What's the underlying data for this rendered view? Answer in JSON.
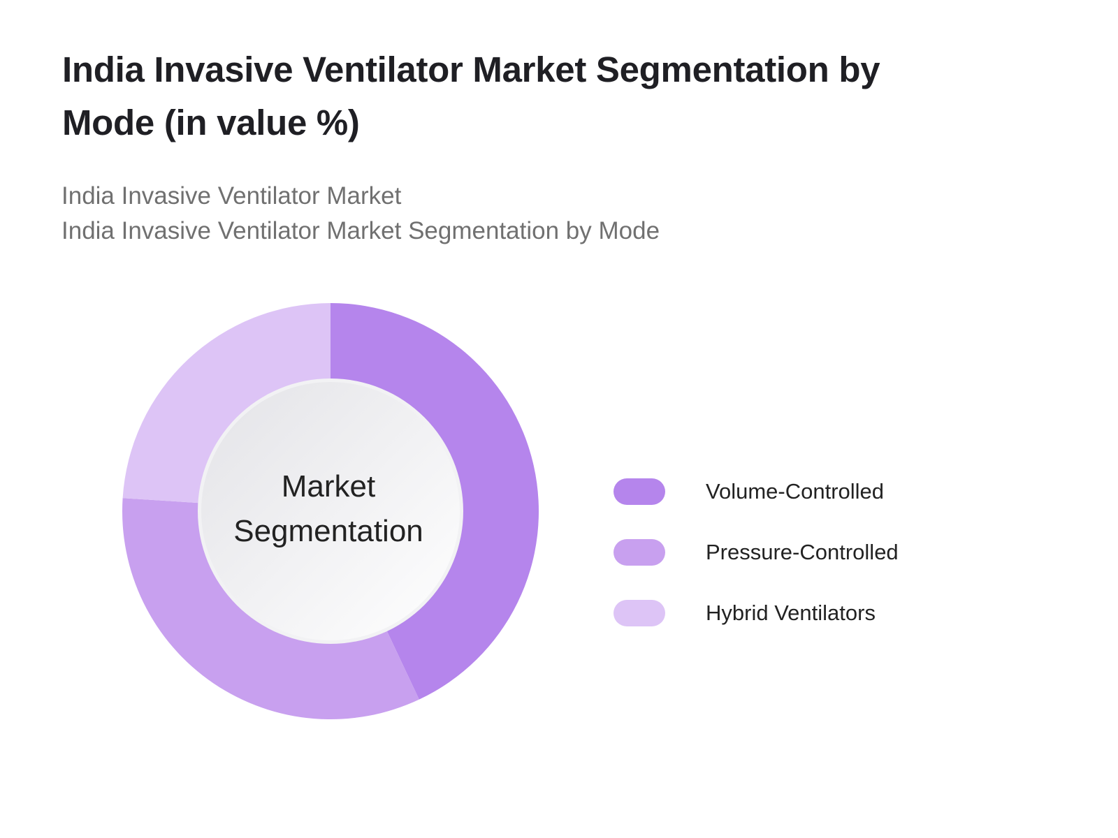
{
  "title": "India Invasive Ventilator Market Segmentation by Mode (in value %)",
  "subtitle": {
    "line1": "India Invasive Ventilator Market",
    "line2": "India Invasive Ventilator Market Segmentation by Mode"
  },
  "center_label": {
    "line1": "Market",
    "line2": "Segmentation"
  },
  "chart_data": {
    "type": "pie",
    "variant": "donut",
    "categories": [
      "Volume-Controlled",
      "Pressure-Controlled",
      "Hybrid Ventilators"
    ],
    "values": [
      43,
      33,
      24
    ],
    "colors": [
      "#b585ec",
      "#c8a0ef",
      "#ddc4f6"
    ],
    "legend_position": "right"
  }
}
